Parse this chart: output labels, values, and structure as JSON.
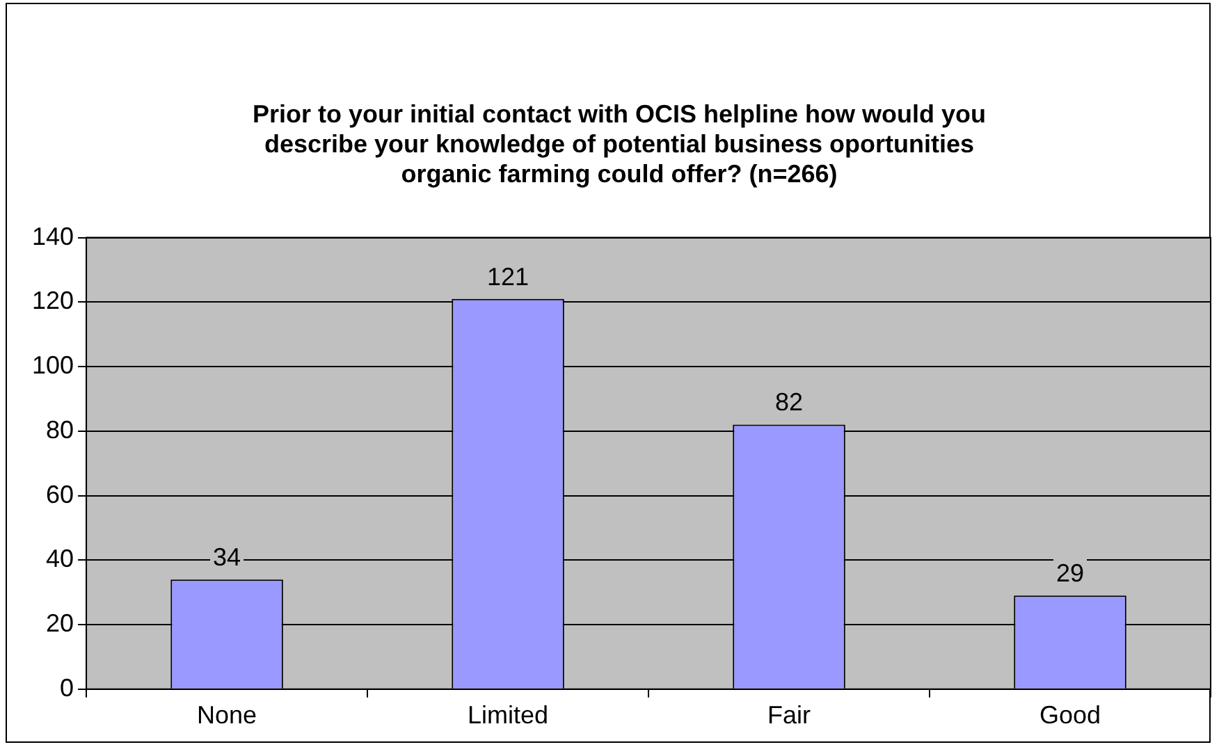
{
  "chart_data": {
    "type": "bar",
    "title": "Prior to your initial contact with OCIS helpline how would you describe your knowledge of potential business oportunities organic farming could offer? (n=266)",
    "categories": [
      "None",
      "Limited",
      "Fair",
      "Good"
    ],
    "values": [
      34,
      121,
      82,
      29
    ],
    "color": "#9999ff",
    "ylim": [
      0,
      140
    ],
    "yticks": [
      0,
      20,
      40,
      60,
      80,
      100,
      120,
      140
    ],
    "grid": "y",
    "data_labels": true,
    "legend": false
  }
}
